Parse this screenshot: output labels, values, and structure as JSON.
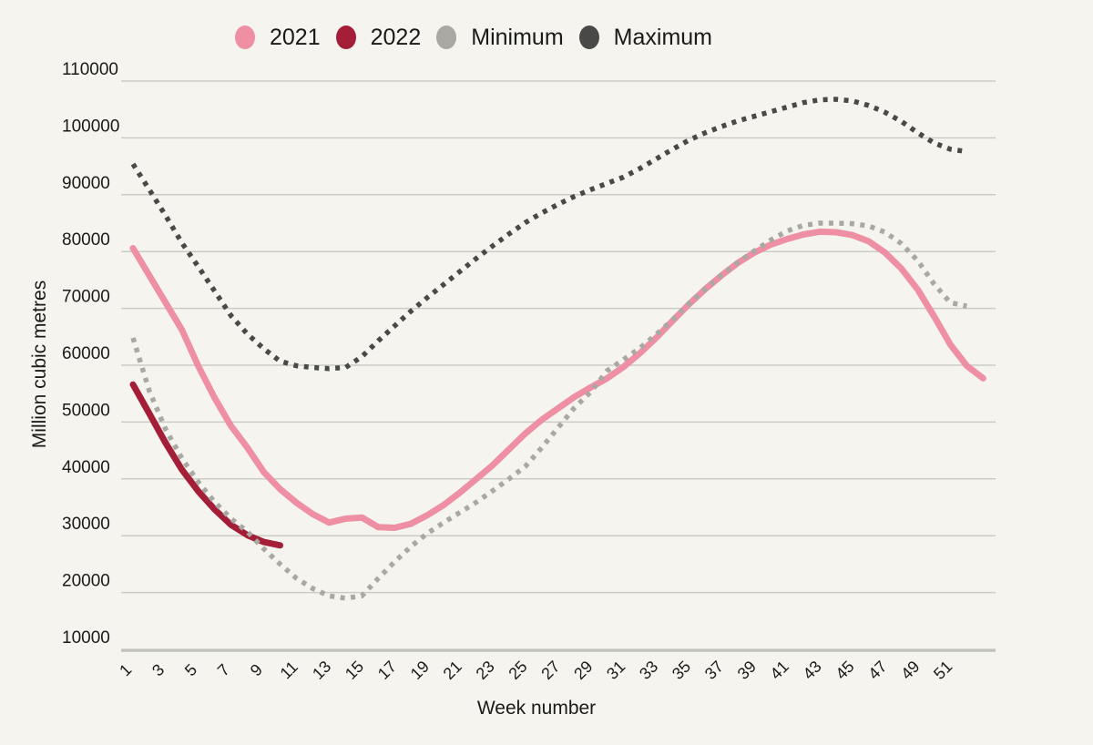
{
  "chart_data": {
    "type": "line",
    "title": "",
    "xlabel": "Week number",
    "ylabel": "Million cubic metres",
    "xlim": [
      1,
      53
    ],
    "ylim": [
      10000,
      110000
    ],
    "grid": "horizontal",
    "legend_position": "top",
    "y_ticks": [
      110000,
      100000,
      90000,
      80000,
      70000,
      60000,
      50000,
      40000,
      30000,
      20000,
      10000
    ],
    "x_ticks": [
      1,
      3,
      5,
      7,
      9,
      11,
      13,
      15,
      17,
      19,
      21,
      23,
      25,
      27,
      29,
      31,
      33,
      35,
      37,
      39,
      41,
      43,
      45,
      47,
      49,
      51
    ],
    "x_unit": "week",
    "series": [
      {
        "name": "2021",
        "color": "#ee8fa4",
        "style": "solid",
        "start_week": 1,
        "values": [
          80600,
          75800,
          71000,
          66200,
          59800,
          54200,
          49300,
          45500,
          41200,
          38200,
          35800,
          33800,
          32300,
          33000,
          33200,
          31500,
          31400,
          32100,
          33600,
          35400,
          37600,
          40000,
          42400,
          45200,
          48000,
          50400,
          52400,
          54400,
          56100,
          57700,
          59700,
          62100,
          64800,
          67800,
          70700,
          73400,
          75800,
          78000,
          79800,
          81200,
          82200,
          83000,
          83500,
          83400,
          82900,
          81800,
          79800,
          77000,
          73300,
          68600,
          63600,
          59900,
          57700
        ]
      },
      {
        "name": "2022",
        "color": "#a51e38",
        "style": "solid",
        "start_week": 1,
        "values": [
          56600,
          51500,
          46300,
          41600,
          37800,
          34600,
          31900,
          30100,
          28900,
          28300
        ]
      },
      {
        "name": "Minimum",
        "color": "#a9a8a2",
        "style": "dotted",
        "start_week": 1,
        "values": [
          64800,
          55500,
          48700,
          43600,
          39400,
          35900,
          33000,
          30700,
          27700,
          25000,
          22500,
          20700,
          19400,
          19000,
          19400,
          22500,
          25400,
          28100,
          30400,
          32300,
          34100,
          35900,
          37900,
          40000,
          42200,
          45500,
          49000,
          52500,
          55300,
          59000,
          61000,
          63000,
          65400,
          68000,
          70800,
          73400,
          75900,
          78100,
          80100,
          82000,
          83600,
          84600,
          85000,
          85000,
          84900,
          84500,
          83400,
          81400,
          78400,
          74300,
          71000,
          70400
        ]
      },
      {
        "name": "Maximum",
        "color": "#494947",
        "style": "dotted",
        "start_week": 1,
        "values": [
          95400,
          90900,
          86300,
          81500,
          77300,
          73000,
          68700,
          65500,
          62900,
          60700,
          59900,
          59600,
          59400,
          59600,
          61500,
          64300,
          66900,
          69500,
          71900,
          74200,
          76500,
          78800,
          81000,
          83100,
          85100,
          86800,
          88300,
          89700,
          90900,
          92000,
          93100,
          94600,
          96300,
          98000,
          99600,
          100900,
          102000,
          103000,
          103800,
          104600,
          105400,
          106200,
          106700,
          106800,
          106500,
          105700,
          104500,
          102900,
          100900,
          99100,
          98000,
          97600
        ]
      }
    ]
  }
}
